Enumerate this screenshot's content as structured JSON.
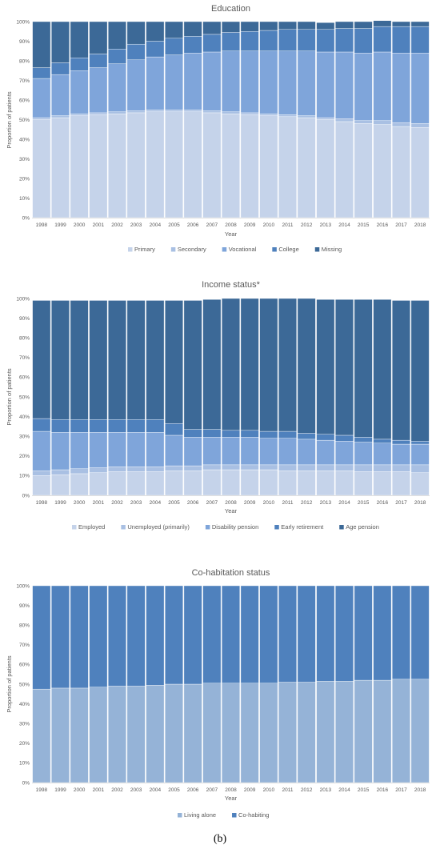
{
  "panel_label": "(b)",
  "chart_data": [
    {
      "type": "bar",
      "stacked": true,
      "title": "Education",
      "xlabel": "Year",
      "ylabel": "Proportion of patients",
      "ylim": [
        0,
        100
      ],
      "ytick_format": "%",
      "legend_position": "bottom",
      "categories": [
        "1998",
        "1999",
        "2000",
        "2001",
        "2002",
        "2003",
        "2004",
        "2005",
        "2006",
        "2007",
        "2008",
        "2009",
        "2010",
        "2011",
        "2012",
        "2013",
        "2014",
        "2015",
        "2016",
        "2017",
        "2018"
      ],
      "series": [
        {
          "name": "Primary",
          "color": "#c5d3ea",
          "values": [
            50,
            51,
            52,
            52.5,
            53,
            53.5,
            54,
            54,
            54,
            53.5,
            53,
            52.5,
            52,
            51.5,
            51,
            50,
            49,
            48,
            47.5,
            46.5,
            46
          ]
        },
        {
          "name": "Secondary",
          "color": "#a9c0e3",
          "values": [
            1,
            1,
            1,
            1,
            1,
            1,
            1,
            1,
            1,
            1,
            1,
            1,
            1,
            1,
            1,
            1,
            1.5,
            1.5,
            2,
            2,
            2
          ]
        },
        {
          "name": "Vocational",
          "color": "#7fa5da",
          "values": [
            20,
            21,
            22,
            23,
            24.5,
            26,
            27,
            28,
            29,
            30,
            31,
            31.5,
            32,
            32.5,
            33,
            33.5,
            34,
            34.5,
            35,
            35.5,
            36
          ]
        },
        {
          "name": "College",
          "color": "#4f81bd",
          "values": [
            5.5,
            6,
            6.5,
            7,
            7.5,
            8,
            8,
            8.5,
            8.5,
            9,
            9.5,
            10,
            10.5,
            11,
            11,
            11.5,
            12,
            12.5,
            13,
            13.5,
            13.5
          ]
        },
        {
          "name": "Missing",
          "color": "#3c6997",
          "values": [
            23.5,
            21,
            18.5,
            16.5,
            14,
            11.5,
            10,
            8.5,
            7.5,
            6.5,
            5.5,
            5,
            4.5,
            4,
            4,
            3.5,
            3.5,
            3.5,
            3,
            2.5,
            2.5
          ]
        }
      ]
    },
    {
      "type": "bar",
      "stacked": true,
      "title": "Income status*",
      "xlabel": "Year",
      "ylabel": "Proportion of patients",
      "ylim": [
        0,
        100
      ],
      "ytick_format": "%",
      "legend_position": "bottom",
      "categories": [
        "1998",
        "1999",
        "2000",
        "2001",
        "2002",
        "2003",
        "2004",
        "2005",
        "2006",
        "2007",
        "2008",
        "2009",
        "2010",
        "2011",
        "2012",
        "2013",
        "2014",
        "2015",
        "2016",
        "2017",
        "2018"
      ],
      "series": [
        {
          "name": "Employed",
          "color": "#c5d3ea",
          "values": [
            10,
            10.5,
            11,
            11.5,
            12,
            12,
            12,
            12.5,
            12.5,
            13,
            13,
            13,
            13,
            12.5,
            12.5,
            12.5,
            12.5,
            12,
            12,
            12,
            11.5
          ]
        },
        {
          "name": "Unemployed (primarily)",
          "color": "#a9c0e3",
          "values": [
            2.5,
            2.5,
            2.5,
            2.5,
            2.5,
            2.5,
            2.5,
            2.5,
            2.5,
            2.5,
            2.5,
            2.5,
            2.5,
            3,
            3,
            3,
            3,
            3.5,
            3.5,
            3.5,
            4
          ]
        },
        {
          "name": "Disability pension",
          "color": "#7fa5da",
          "values": [
            20,
            19,
            18.5,
            18,
            17.5,
            17.5,
            17.5,
            15.5,
            14.5,
            14,
            14,
            14,
            13.5,
            13.5,
            13,
            12.5,
            12,
            11.5,
            11,
            10.5,
            10.5
          ]
        },
        {
          "name": "Early retirement",
          "color": "#4f81bd",
          "values": [
            6.5,
            6.5,
            6.5,
            6.5,
            6.5,
            6.5,
            6.5,
            6,
            4,
            4,
            3.5,
            3.5,
            3.5,
            3.5,
            3,
            3,
            3,
            2.5,
            2,
            2,
            1.5
          ]
        },
        {
          "name": "Age pension",
          "color": "#3c6997",
          "values": [
            60,
            60.5,
            60.5,
            60.5,
            60.5,
            60.5,
            60.5,
            62.5,
            65.5,
            66,
            67,
            67,
            67.5,
            67.5,
            68.5,
            68.5,
            69,
            70,
            71,
            71,
            71.5
          ]
        }
      ]
    },
    {
      "type": "bar",
      "stacked": true,
      "title": "Co-habitation status",
      "xlabel": "Year",
      "ylabel": "Proportion of patients",
      "ylim": [
        0,
        100
      ],
      "ytick_format": "%",
      "legend_position": "bottom",
      "categories": [
        "1998",
        "1999",
        "2000",
        "2001",
        "2002",
        "2003",
        "2004",
        "2005",
        "2006",
        "2007",
        "2008",
        "2009",
        "2010",
        "2011",
        "2012",
        "2013",
        "2014",
        "2015",
        "2016",
        "2017",
        "2018"
      ],
      "series": [
        {
          "name": "Living alone",
          "color": "#95b3d7",
          "values": [
            47.5,
            48,
            48,
            48.5,
            49,
            49,
            49.5,
            50,
            50,
            50.5,
            50.5,
            50.5,
            50.5,
            51,
            51,
            51.5,
            51.5,
            52,
            52,
            52.5,
            52.5
          ]
        },
        {
          "name": "Co-habiting",
          "color": "#4f81bd",
          "values": [
            52.5,
            52,
            52,
            51.5,
            51,
            51,
            50.5,
            50,
            50,
            49.5,
            49.5,
            49.5,
            49.5,
            49,
            49,
            48.5,
            48.5,
            48,
            48,
            47.5,
            47.5
          ]
        }
      ]
    }
  ]
}
